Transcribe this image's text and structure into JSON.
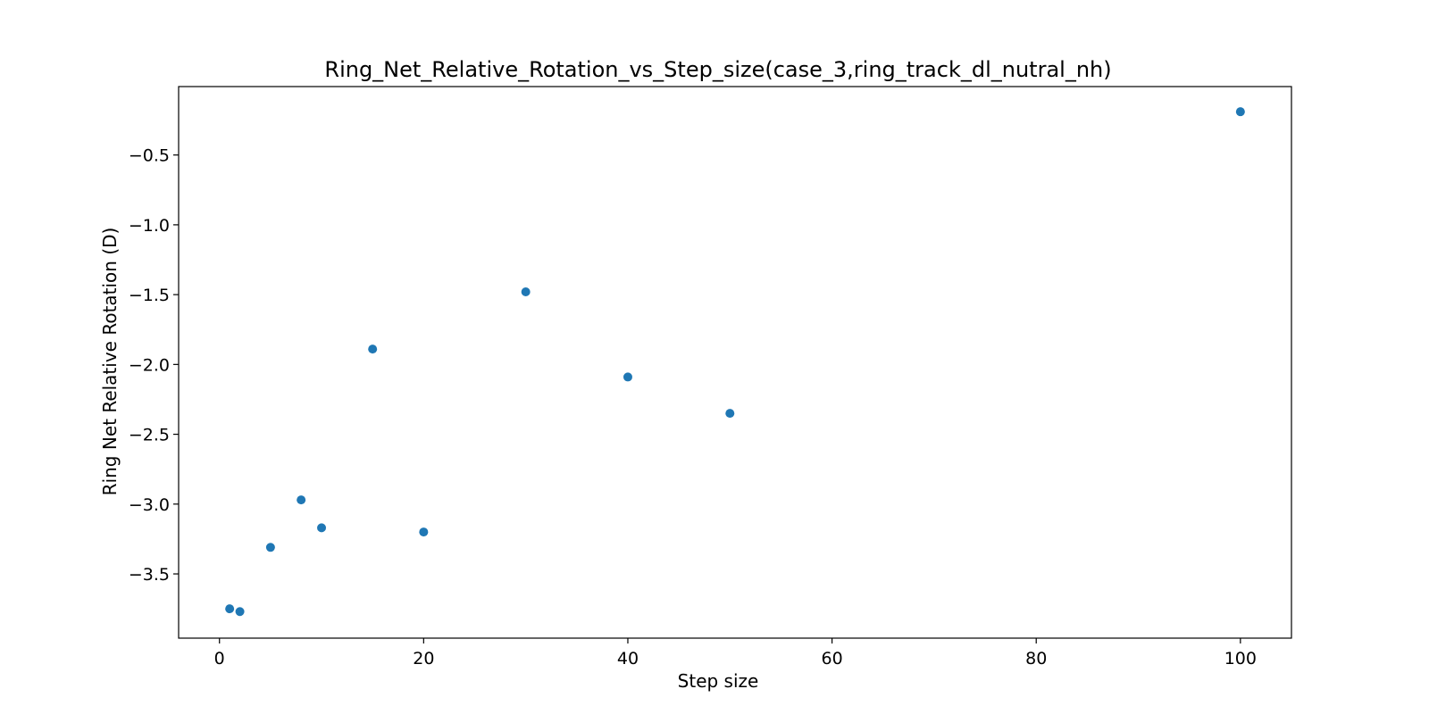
{
  "chart_data": {
    "type": "scatter",
    "title": "Ring_Net_Relative_Rotation_vs_Step_size(case_3,ring_track_dl_nutral_nh)",
    "xlabel": "Step size",
    "ylabel": "Ring Net Relative Rotation (D)",
    "xlim": [
      -4,
      105
    ],
    "ylim": [
      -3.96,
      -0.01
    ],
    "xticks": [
      0,
      20,
      40,
      60,
      80,
      100
    ],
    "xtick_labels": [
      "0",
      "20",
      "40",
      "60",
      "80",
      "100"
    ],
    "yticks": [
      -0.5,
      -1.0,
      -1.5,
      -2.0,
      -2.5,
      -3.0,
      -3.5
    ],
    "ytick_labels": [
      "−0.5",
      "−1.0",
      "−1.5",
      "−2.0",
      "−2.5",
      "−3.0",
      "−3.5"
    ],
    "grid": false,
    "series": [
      {
        "color": "#1f77b4",
        "points": [
          {
            "x": 1,
            "y": -3.75
          },
          {
            "x": 2,
            "y": -3.77
          },
          {
            "x": 5,
            "y": -3.31
          },
          {
            "x": 8,
            "y": -2.97
          },
          {
            "x": 10,
            "y": -3.17
          },
          {
            "x": 15,
            "y": -1.89
          },
          {
            "x": 20,
            "y": -3.2
          },
          {
            "x": 30,
            "y": -1.48
          },
          {
            "x": 40,
            "y": -2.09
          },
          {
            "x": 50,
            "y": -2.35
          },
          {
            "x": 100,
            "y": -0.19
          }
        ]
      }
    ]
  }
}
